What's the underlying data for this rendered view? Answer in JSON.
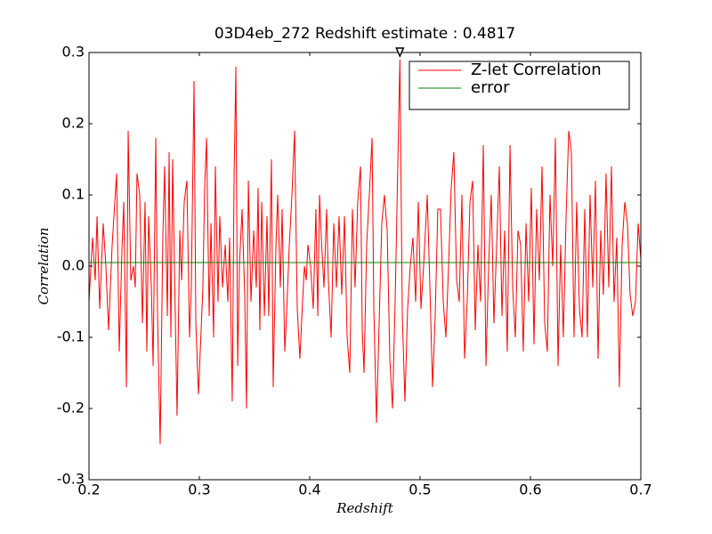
{
  "chart_data": {
    "type": "line",
    "title": "03D4eb_272 Redshift estimate : 0.4817",
    "xlabel": "Redshift",
    "ylabel": "Correlation",
    "xlim": [
      0.2,
      0.7
    ],
    "ylim": [
      -0.3,
      0.3
    ],
    "xticks": [
      0.2,
      0.3,
      0.4,
      0.5,
      0.6,
      0.7
    ],
    "yticks": [
      -0.3,
      -0.2,
      -0.1,
      {
        "value": 0,
        "label": "0.0"
      },
      0.1,
      0.2,
      0.3
    ],
    "grid": false,
    "legend": "upper right",
    "estimate_marker": {
      "x": 0.4817,
      "y": 0.3
    },
    "series": [
      {
        "name": "Z-let Correlation",
        "color": "#ff0000",
        "x": [
          0.2,
          0.2032,
          0.2056,
          0.2073,
          0.2097,
          0.2129,
          0.2153,
          0.2177,
          0.221,
          0.2234,
          0.225,
          0.2274,
          0.2298,
          0.2315,
          0.2339,
          0.2355,
          0.2379,
          0.2403,
          0.2419,
          0.2435,
          0.246,
          0.2484,
          0.2508,
          0.2524,
          0.254,
          0.2565,
          0.2581,
          0.2605,
          0.2621,
          0.2645,
          0.2669,
          0.2685,
          0.271,
          0.2726,
          0.2742,
          0.2758,
          0.2774,
          0.2798,
          0.2823,
          0.2839,
          0.2863,
          0.2887,
          0.2911,
          0.2927,
          0.2952,
          0.2968,
          0.2992,
          0.3008,
          0.3032,
          0.3048,
          0.3065,
          0.3089,
          0.3105,
          0.3129,
          0.3145,
          0.3169,
          0.3185,
          0.321,
          0.3234,
          0.3258,
          0.3274,
          0.3298,
          0.3315,
          0.3331,
          0.3347,
          0.3363,
          0.3387,
          0.3411,
          0.3427,
          0.3444,
          0.3468,
          0.3492,
          0.3516,
          0.3532,
          0.3548,
          0.3565,
          0.3589,
          0.3613,
          0.3629,
          0.3653,
          0.3669,
          0.3694,
          0.371,
          0.3734,
          0.375,
          0.3774,
          0.379,
          0.3815,
          0.3839,
          0.3863,
          0.3887,
          0.3911,
          0.3935,
          0.3952,
          0.3968,
          0.3984,
          0.4008,
          0.4032,
          0.4056,
          0.4073,
          0.4089,
          0.4105,
          0.4129,
          0.4153,
          0.4169,
          0.4194,
          0.4218,
          0.4242,
          0.4266,
          0.429,
          0.4315,
          0.4339,
          0.4363,
          0.4387,
          0.4411,
          0.4435,
          0.446,
          0.4476,
          0.4492,
          0.4516,
          0.454,
          0.4565,
          0.4581,
          0.4605,
          0.4629,
          0.4653,
          0.4677,
          0.4702,
          0.4726,
          0.475,
          0.4774,
          0.4798,
          0.4817,
          0.4839,
          0.4863,
          0.4887,
          0.4911,
          0.4935,
          0.496,
          0.4984,
          0.5008,
          0.5032,
          0.5065,
          0.5089,
          0.5113,
          0.5137,
          0.5161,
          0.5185,
          0.521,
          0.5234,
          0.5258,
          0.5282,
          0.5306,
          0.5331,
          0.5355,
          0.5379,
          0.5403,
          0.5427,
          0.5452,
          0.5476,
          0.55,
          0.5524,
          0.5548,
          0.5573,
          0.5597,
          0.5621,
          0.5645,
          0.5669,
          0.5694,
          0.5718,
          0.5742,
          0.5766,
          0.579,
          0.5815,
          0.5839,
          0.5863,
          0.5887,
          0.5911,
          0.5935,
          0.596,
          0.5984,
          0.6008,
          0.6032,
          0.6056,
          0.6081,
          0.6105,
          0.6129,
          0.6153,
          0.6177,
          0.6202,
          0.6226,
          0.625,
          0.6274,
          0.6298,
          0.6323,
          0.6347,
          0.6371,
          0.6395,
          0.6419,
          0.6444,
          0.6468,
          0.6492,
          0.6516,
          0.654,
          0.6565,
          0.6589,
          0.6613,
          0.6637,
          0.6661,
          0.6685,
          0.671,
          0.6734,
          0.6758,
          0.6782,
          0.6806,
          0.6831,
          0.6855,
          0.6879,
          0.6903,
          0.6927,
          0.6952,
          0.6976,
          0.7
        ],
        "values": [
          -0.05,
          0.04,
          -0.02,
          0.07,
          -0.06,
          0.06,
          0.0,
          -0.09,
          0.03,
          0.09,
          0.13,
          -0.12,
          0.02,
          0.09,
          -0.17,
          0.19,
          -0.02,
          0.0,
          -0.03,
          0.13,
          0.1,
          -0.08,
          0.09,
          -0.12,
          0.07,
          -0.03,
          -0.14,
          0.18,
          -0.07,
          -0.25,
          0.04,
          0.14,
          -0.07,
          0.16,
          -0.1,
          0.15,
          0.0,
          -0.21,
          0.05,
          -0.02,
          0.09,
          0.12,
          -0.1,
          -0.03,
          0.26,
          -0.08,
          -0.18,
          -0.12,
          -0.03,
          0.11,
          0.18,
          -0.07,
          0.06,
          -0.1,
          0.14,
          -0.05,
          0.07,
          -0.03,
          0.03,
          -0.05,
          0.04,
          -0.19,
          0.13,
          0.28,
          -0.14,
          0.0,
          0.08,
          -0.04,
          -0.2,
          0.12,
          -0.05,
          0.05,
          -0.03,
          0.11,
          -0.09,
          0.09,
          -0.07,
          0.07,
          -0.07,
          0.15,
          -0.17,
          0.03,
          0.1,
          -0.03,
          0.08,
          -0.12,
          -0.07,
          0.03,
          0.1,
          0.19,
          -0.06,
          -0.13,
          -0.05,
          0.0,
          -0.02,
          0.03,
          0.0,
          -0.06,
          0.08,
          -0.07,
          0.1,
          0.04,
          -0.03,
          0.08,
          -0.02,
          -0.1,
          0.06,
          -0.03,
          0.07,
          -0.04,
          0.07,
          -0.1,
          -0.15,
          0.08,
          -0.03,
          0.09,
          0.14,
          -0.09,
          -0.15,
          0.03,
          0.1,
          0.18,
          -0.06,
          -0.22,
          -0.08,
          0.06,
          0.1,
          0.05,
          -0.13,
          -0.2,
          -0.05,
          0.14,
          0.29,
          -0.07,
          -0.19,
          -0.06,
          0.0,
          0.04,
          -0.05,
          0.09,
          -0.06,
          0.0,
          0.1,
          -0.03,
          -0.17,
          -0.07,
          0.08,
          0.08,
          -0.05,
          -0.1,
          0.0,
          0.11,
          0.16,
          -0.02,
          -0.05,
          0.1,
          -0.13,
          -0.05,
          0.09,
          0.12,
          -0.09,
          0.03,
          -0.05,
          0.17,
          -0.14,
          0.0,
          0.1,
          -0.08,
          0.03,
          0.14,
          -0.07,
          0.05,
          -0.12,
          0.17,
          -0.03,
          -0.1,
          0.05,
          0.03,
          -0.12,
          0.06,
          -0.05,
          0.11,
          -0.11,
          0.08,
          -0.02,
          0.14,
          -0.08,
          -0.12,
          0.1,
          0.0,
          0.18,
          -0.14,
          0.03,
          -0.1,
          0.07,
          0.19,
          0.16,
          -0.1,
          0.09,
          -0.06,
          -0.1,
          0.08,
          -0.1,
          0.1,
          -0.03,
          0.12,
          -0.13,
          0.05,
          -0.04,
          0.13,
          -0.03,
          0.14,
          -0.05,
          0.04,
          -0.17,
          0.03,
          0.09,
          0.06,
          -0.04,
          -0.07,
          -0.05,
          0.06,
          0.01
        ]
      },
      {
        "name": "error",
        "color": "#008000",
        "x": [
          0.2,
          0.7
        ],
        "values": [
          0.005,
          0.005
        ]
      }
    ]
  }
}
